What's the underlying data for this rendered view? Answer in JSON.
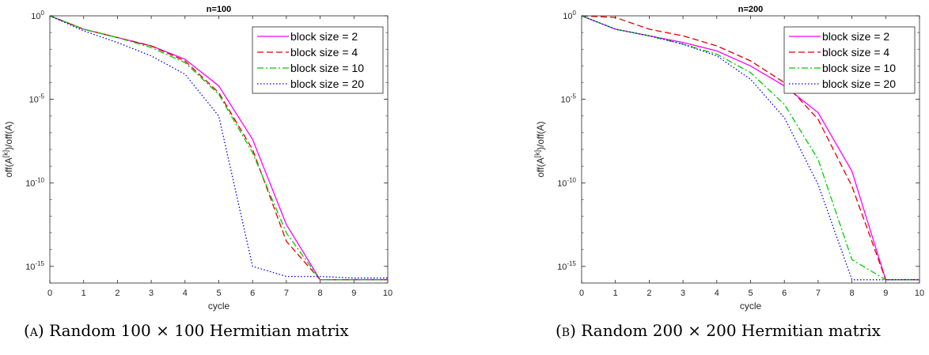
{
  "chart_data": [
    {
      "type": "line",
      "title": "n=100",
      "xlabel": "cycle",
      "ylabel": "off(A^[k])/off(A)",
      "ylabel_parts": {
        "base": "off(A",
        "sup": "[k]",
        "rest": ")/off(A)"
      },
      "xlim": [
        0,
        10
      ],
      "ylim_log10": [
        -16,
        0
      ],
      "yscale": "log",
      "x_ticks": [
        0,
        1,
        2,
        3,
        4,
        5,
        6,
        7,
        8,
        9,
        10
      ],
      "y_ticks": [
        {
          "base": "10",
          "exp": "0",
          "value": 0
        },
        {
          "base": "10",
          "exp": "-5",
          "value": -5
        },
        {
          "base": "10",
          "exp": "-10",
          "value": -10
        },
        {
          "base": "10",
          "exp": "-15",
          "value": -15
        }
      ],
      "legend_position": "top-right",
      "series": [
        {
          "name": "block size = 2",
          "color": "#ff00ff",
          "dash": "solid",
          "x": [
            0,
            1,
            2,
            3,
            4,
            5,
            6,
            7,
            8,
            9,
            10
          ],
          "y_log10": [
            0,
            -0.8,
            -1.3,
            -1.8,
            -2.6,
            -4.2,
            -7.4,
            -12.5,
            -15.8,
            -15.8,
            -15.8
          ]
        },
        {
          "name": "block size = 4",
          "color": "#dd0000",
          "dash": "dashed",
          "x": [
            0,
            1,
            2,
            3,
            4,
            5,
            6,
            7,
            8,
            9,
            10
          ],
          "y_log10": [
            0,
            -0.8,
            -1.3,
            -1.8,
            -2.7,
            -4.6,
            -8.0,
            -13.5,
            -15.8,
            -15.8,
            -15.8
          ]
        },
        {
          "name": "block size = 10",
          "color": "#00cc00",
          "dash": "dashdot",
          "x": [
            0,
            1,
            2,
            3,
            4,
            5,
            6,
            7,
            8,
            9,
            10
          ],
          "y_log10": [
            0,
            -0.8,
            -1.3,
            -1.9,
            -2.8,
            -4.7,
            -8.2,
            -13.0,
            -15.8,
            -15.8,
            -15.8
          ]
        },
        {
          "name": "block size = 20",
          "color": "#0000ee",
          "dash": "dotted",
          "x": [
            0,
            1,
            2,
            3,
            4,
            5,
            6,
            7,
            8,
            9,
            10
          ],
          "y_log10": [
            0,
            -0.9,
            -1.6,
            -2.4,
            -3.5,
            -6.0,
            -15.0,
            -15.6,
            -15.6,
            -15.7,
            -15.7
          ]
        }
      ]
    },
    {
      "type": "line",
      "title": "n=200",
      "xlabel": "cycle",
      "ylabel": "off(A^[k])/off(A)",
      "ylabel_parts": {
        "base": "off(A",
        "sup": "[k]",
        "rest": ")/off(A)"
      },
      "xlim": [
        0,
        10
      ],
      "ylim_log10": [
        -16,
        0
      ],
      "yscale": "log",
      "x_ticks": [
        0,
        1,
        2,
        3,
        4,
        5,
        6,
        7,
        8,
        9,
        10
      ],
      "y_ticks": [
        {
          "base": "10",
          "exp": "0",
          "value": 0
        },
        {
          "base": "10",
          "exp": "-5",
          "value": -5
        },
        {
          "base": "10",
          "exp": "-10",
          "value": -10
        },
        {
          "base": "10",
          "exp": "-15",
          "value": -15
        }
      ],
      "legend_position": "top-right",
      "series": [
        {
          "name": "block size = 2",
          "color": "#ff00ff",
          "dash": "solid",
          "x": [
            0,
            1,
            2,
            3,
            4,
            5,
            6,
            7,
            8,
            9,
            10
          ],
          "y_log10": [
            0,
            -0.8,
            -1.2,
            -1.6,
            -2.1,
            -3.0,
            -4.2,
            -5.8,
            -9.3,
            -15.8,
            -15.8
          ]
        },
        {
          "name": "block size = 4",
          "color": "#dd0000",
          "dash": "dashed",
          "x": [
            0,
            1,
            2,
            3,
            4,
            5,
            6,
            7,
            8,
            9,
            10
          ],
          "y_log10": [
            0,
            -0.1,
            -0.8,
            -1.2,
            -1.8,
            -2.7,
            -4.0,
            -6.2,
            -10.2,
            -15.8,
            -15.8
          ]
        },
        {
          "name": "block size = 10",
          "color": "#00cc00",
          "dash": "dashdot",
          "x": [
            0,
            1,
            2,
            3,
            4,
            5,
            6,
            7,
            8,
            9,
            10
          ],
          "y_log10": [
            0,
            -0.8,
            -1.2,
            -1.7,
            -2.3,
            -3.4,
            -5.3,
            -8.6,
            -14.6,
            -15.8,
            -15.8
          ]
        },
        {
          "name": "block size = 20",
          "color": "#0000ee",
          "dash": "dotted",
          "x": [
            0,
            1,
            2,
            3,
            4,
            5,
            6,
            7,
            8,
            9,
            10
          ],
          "y_log10": [
            0,
            -0.8,
            -1.2,
            -1.7,
            -2.4,
            -3.8,
            -6.1,
            -10.1,
            -15.8,
            -15.8,
            -15.8
          ]
        }
      ]
    }
  ],
  "captions": [
    {
      "label": "(a)",
      "text": "Random 100 × 100 Hermitian matrix"
    },
    {
      "label": "(b)",
      "text": "Random 200 × 200 Hermitian matrix"
    }
  ]
}
